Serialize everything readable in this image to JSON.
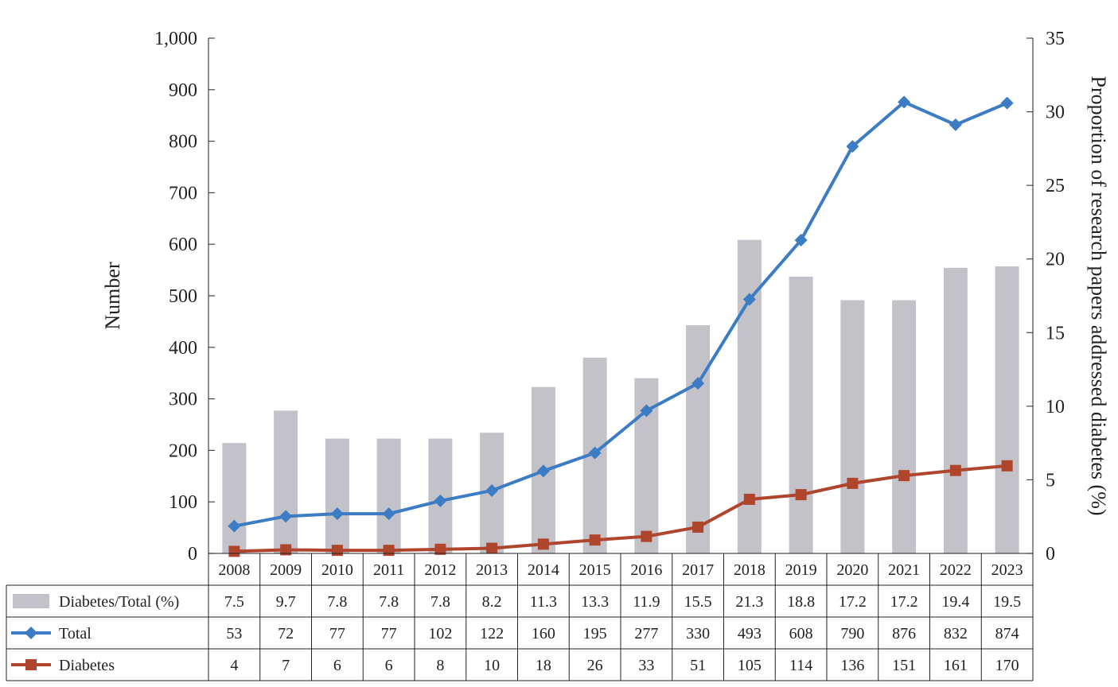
{
  "chart_data": {
    "type": "bar+line",
    "categories": [
      "2008",
      "2009",
      "2010",
      "2011",
      "2012",
      "2013",
      "2014",
      "2015",
      "2016",
      "2017",
      "2018",
      "2019",
      "2020",
      "2021",
      "2022",
      "2023"
    ],
    "series": [
      {
        "name": "Diabetes/Total (%)",
        "type": "bar",
        "axis": "right",
        "color": "#c3c2c8",
        "values": [
          7.5,
          9.7,
          7.8,
          7.8,
          7.8,
          8.2,
          11.3,
          13.3,
          11.9,
          15.5,
          21.3,
          18.8,
          17.2,
          17.2,
          19.4,
          19.5
        ]
      },
      {
        "name": "Total",
        "type": "line",
        "axis": "left",
        "color": "#3b7cc4",
        "marker": "diamond",
        "values": [
          53,
          72,
          77,
          77,
          102,
          122,
          160,
          195,
          277,
          330,
          493,
          608,
          790,
          876,
          832,
          874
        ]
      },
      {
        "name": "Diabetes",
        "type": "line",
        "axis": "left",
        "color": "#b0452d",
        "marker": "square",
        "values": [
          4,
          7,
          6,
          6,
          8,
          10,
          18,
          26,
          33,
          51,
          105,
          114,
          136,
          151,
          161,
          170
        ]
      }
    ],
    "ylabel": "Number",
    "y2label": "Proportion of research papers addressed diabetes (%)",
    "ylim": [
      0,
      1000
    ],
    "y2lim": [
      0,
      35
    ],
    "yticks": [
      "0",
      "100",
      "200",
      "300",
      "400",
      "500",
      "600",
      "700",
      "800",
      "900",
      "1,000"
    ],
    "y2ticks": [
      "0",
      "5",
      "10",
      "15",
      "20",
      "25",
      "30",
      "35"
    ],
    "grid": false,
    "legend": "data-table below x-axis"
  }
}
